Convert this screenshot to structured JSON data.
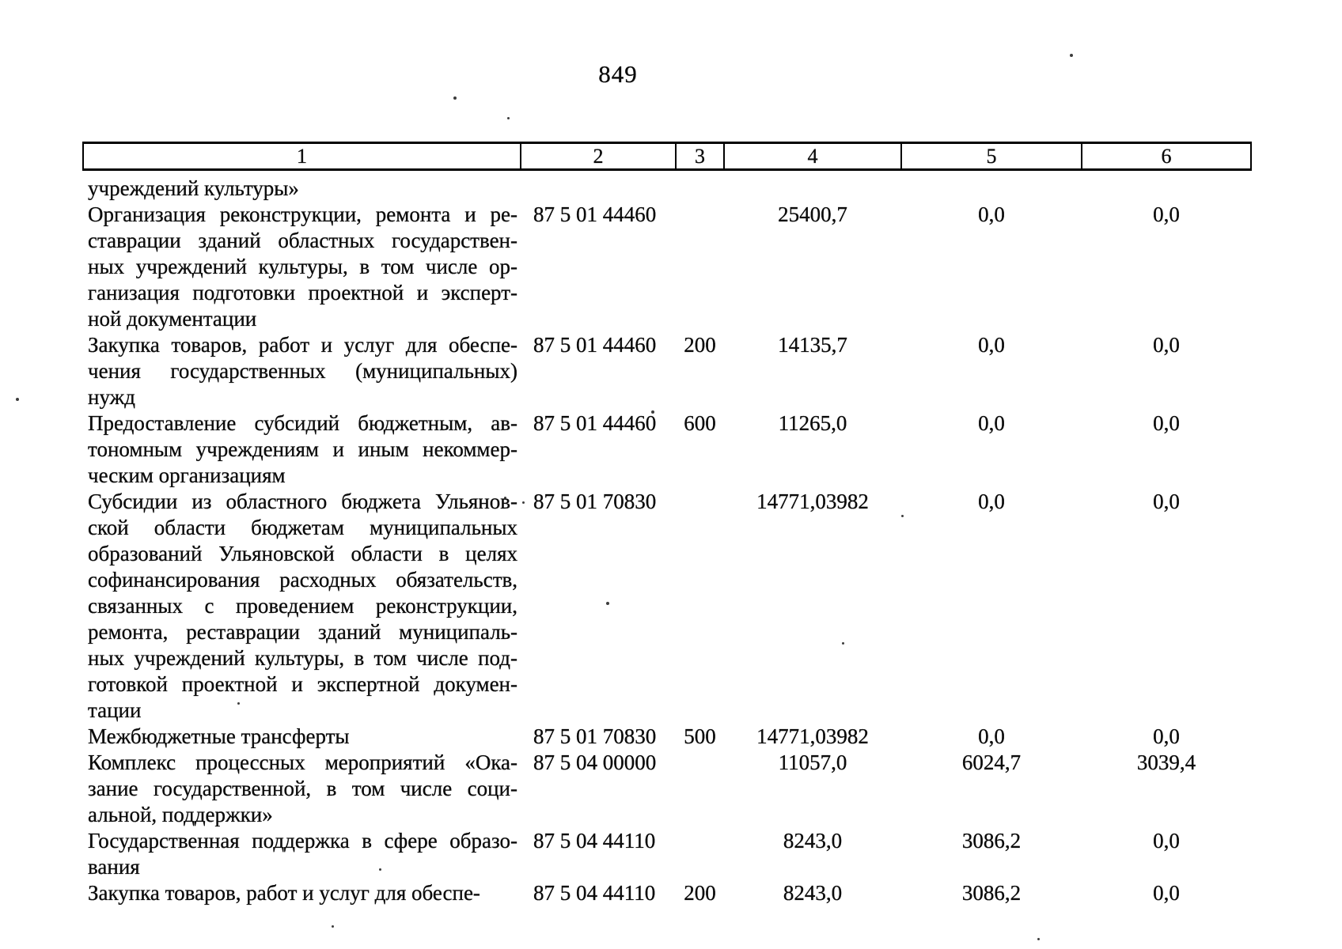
{
  "page_number": "849",
  "table": {
    "header_cols": [
      "1",
      "2",
      "3",
      "4",
      "5",
      "6"
    ],
    "rows": [
      {
        "name_lines": [
          "учреждений культуры»"
        ],
        "csr_code": "",
        "vr_code": "",
        "amount_year1": "",
        "amount_year2": "",
        "amount_year3": ""
      },
      {
        "name_lines": [
          "Организация реконструкции, ремонта и ре-",
          "ставрации зданий областных государствен-",
          "ных учреждений культуры, в том числе ор-",
          "ганизация подготовки проектной и эксперт-",
          "ной документации"
        ],
        "csr_code": "87 5 01 44460",
        "vr_code": "",
        "amount_year1": "25400,7",
        "amount_year2": "0,0",
        "amount_year3": "0,0"
      },
      {
        "name_lines": [
          "Закупка товаров, работ и услуг для обеспе-",
          "чения государственных (муниципальных)",
          "нужд"
        ],
        "csr_code": "87 5 01 44460",
        "vr_code": "200",
        "amount_year1": "14135,7",
        "amount_year2": "0,0",
        "amount_year3": "0,0"
      },
      {
        "name_lines": [
          "Предоставление субсидий бюджетным, ав-",
          "тономным учреждениям и иным некоммер-",
          "ческим организациям"
        ],
        "csr_code": "87 5 01 44460",
        "vr_code": "600",
        "amount_year1": "11265,0",
        "amount_year2": "0,0",
        "amount_year3": "0,0"
      },
      {
        "name_lines": [
          "Субсидии из областного бюджета Ульянов-",
          "ской области бюджетам муниципальных",
          "образований Ульяновской области в целях",
          "софинансирования расходных обязательств,",
          "связанных с проведением реконструкции,",
          "ремонта, реставрации зданий муниципаль-",
          "ных учреждений культуры, в том числе под-",
          "готовкой проектной и экспертной докумен-",
          "тации"
        ],
        "csr_code": "87 5 01 70830",
        "vr_code": "",
        "amount_year1": "14771,03982",
        "amount_year2": "0,0",
        "amount_year3": "0,0"
      },
      {
        "name_lines": [
          "Межбюджетные трансферты"
        ],
        "csr_code": "87 5 01 70830",
        "vr_code": "500",
        "amount_year1": "14771,03982",
        "amount_year2": "0,0",
        "amount_year3": "0,0"
      },
      {
        "name_lines": [
          "Комплекс процессных мероприятий «Ока-",
          "зание государственной, в том числе соци-",
          "альной, поддержки»"
        ],
        "csr_code": "87 5 04 00000",
        "vr_code": "",
        "amount_year1": "11057,0",
        "amount_year2": "6024,7",
        "amount_year3": "3039,4"
      },
      {
        "name_lines": [
          "Государственная поддержка в сфере образо-",
          "вания"
        ],
        "csr_code": "87 5 04 44110",
        "vr_code": "",
        "amount_year1": "8243,0",
        "amount_year2": "3086,2",
        "amount_year3": "0,0"
      },
      {
        "name_lines": [
          "Закупка товаров, работ и услуг для обеспе-"
        ],
        "csr_code": "87 5 04 44110",
        "vr_code": "200",
        "amount_year1": "8243,0",
        "amount_year2": "3086,2",
        "amount_year3": "0,0"
      }
    ]
  }
}
